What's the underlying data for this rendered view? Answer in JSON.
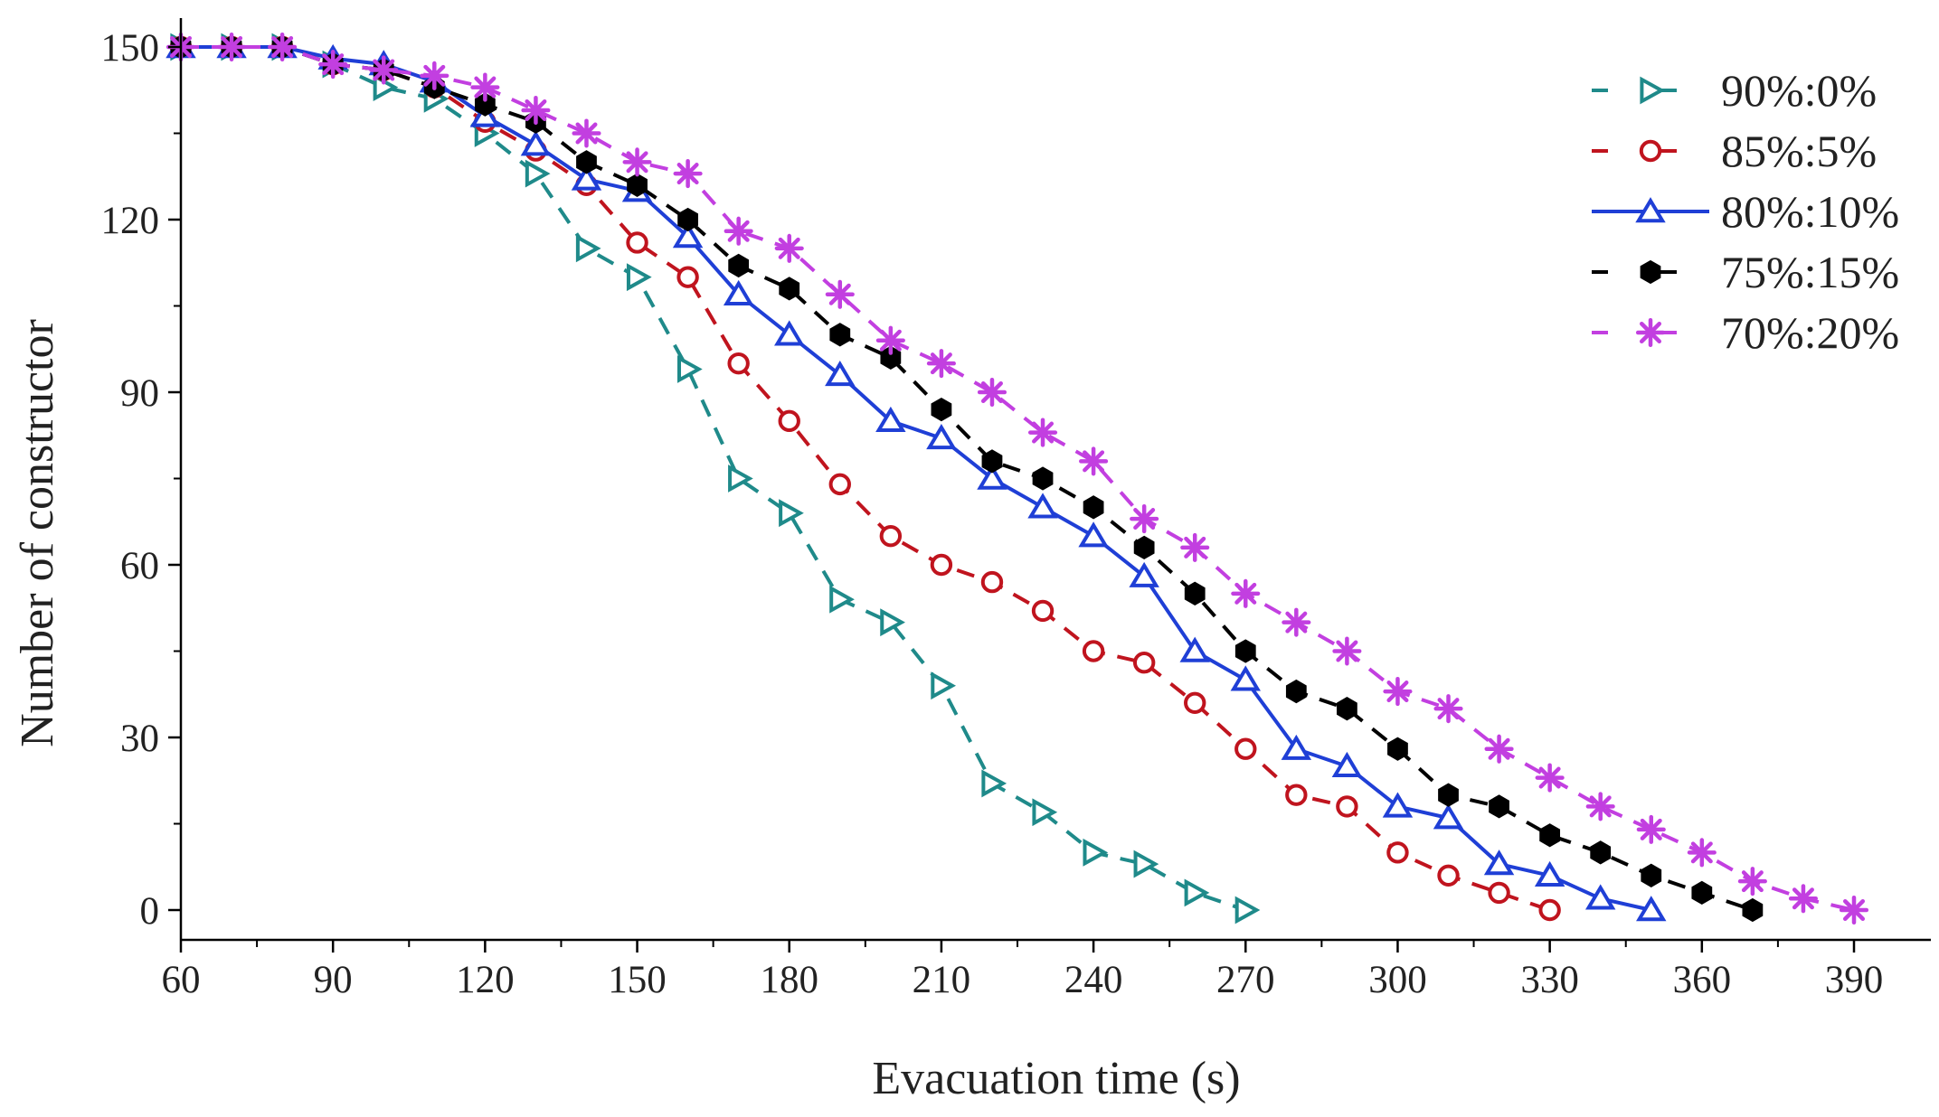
{
  "chart_data": {
    "type": "line",
    "title": "",
    "xlabel": "Evacuation time (s)",
    "ylabel": "Number of constructor",
    "xlim": [
      60,
      390
    ],
    "ylim": [
      0,
      150
    ],
    "xticks": [
      60,
      90,
      120,
      150,
      180,
      210,
      240,
      270,
      300,
      330,
      360,
      390
    ],
    "yticks": [
      0,
      30,
      60,
      90,
      120,
      150
    ],
    "grid": false,
    "legend_position": "top-right",
    "series": [
      {
        "name": "90%:0%",
        "color": "#1f8a8a",
        "marker": "triangle-right",
        "dash": "dashed",
        "x": [
          60,
          70,
          80,
          90,
          100,
          110,
          120,
          130,
          140,
          150,
          160,
          170,
          180,
          190,
          200,
          210,
          220,
          230,
          240,
          250,
          260,
          270
        ],
        "y": [
          150,
          150,
          150,
          147,
          143,
          141,
          135,
          128,
          115,
          110,
          94,
          75,
          69,
          54,
          50,
          39,
          22,
          17,
          10,
          8,
          3,
          0
        ]
      },
      {
        "name": "85%:5%",
        "color": "#c0141e",
        "marker": "circle-open",
        "dash": "dashed",
        "x": [
          60,
          70,
          80,
          90,
          100,
          110,
          120,
          130,
          140,
          150,
          160,
          170,
          180,
          190,
          200,
          210,
          220,
          230,
          240,
          250,
          260,
          270,
          280,
          290,
          300,
          310,
          320,
          330
        ],
        "y": [
          150,
          150,
          150,
          147,
          146,
          143,
          137,
          132,
          126,
          116,
          110,
          95,
          85,
          74,
          65,
          60,
          57,
          52,
          45,
          43,
          36,
          28,
          20,
          18,
          10,
          6,
          3,
          0
        ]
      },
      {
        "name": "80%:10%",
        "color": "#1f3fd6",
        "marker": "triangle-up-open",
        "dash": "solid",
        "x": [
          60,
          70,
          80,
          90,
          100,
          110,
          120,
          130,
          140,
          150,
          160,
          170,
          180,
          190,
          200,
          210,
          220,
          230,
          240,
          250,
          260,
          270,
          280,
          290,
          300,
          310,
          320,
          330,
          340,
          350
        ],
        "y": [
          150,
          150,
          150,
          148,
          147,
          144,
          138,
          133,
          127,
          125,
          117,
          107,
          100,
          93,
          85,
          82,
          75,
          70,
          65,
          58,
          45,
          40,
          28,
          25,
          18,
          16,
          8,
          6,
          2,
          0
        ]
      },
      {
        "name": "75%:15%",
        "color": "#000000",
        "marker": "hexagon-filled",
        "dash": "dashed",
        "x": [
          60,
          70,
          80,
          90,
          100,
          110,
          120,
          130,
          140,
          150,
          160,
          170,
          180,
          190,
          200,
          210,
          220,
          230,
          240,
          250,
          260,
          270,
          280,
          290,
          300,
          310,
          320,
          330,
          340,
          350,
          360,
          370
        ],
        "y": [
          150,
          150,
          150,
          147,
          146,
          143,
          140,
          137,
          130,
          126,
          120,
          112,
          108,
          100,
          96,
          87,
          78,
          75,
          70,
          63,
          55,
          45,
          38,
          35,
          28,
          20,
          18,
          13,
          10,
          6,
          3,
          0
        ]
      },
      {
        "name": "70%:20%",
        "color": "#c23fe0",
        "marker": "asterisk",
        "dash": "dashed",
        "x": [
          60,
          70,
          80,
          90,
          100,
          110,
          120,
          130,
          140,
          150,
          160,
          170,
          180,
          190,
          200,
          210,
          220,
          230,
          240,
          250,
          260,
          270,
          280,
          290,
          300,
          310,
          320,
          330,
          340,
          350,
          360,
          370,
          380,
          390
        ],
        "y": [
          150,
          150,
          150,
          147,
          146,
          145,
          143,
          139,
          135,
          130,
          128,
          118,
          115,
          107,
          99,
          95,
          90,
          83,
          78,
          68,
          63,
          55,
          50,
          45,
          38,
          35,
          28,
          23,
          18,
          14,
          10,
          5,
          2,
          0
        ]
      }
    ]
  }
}
